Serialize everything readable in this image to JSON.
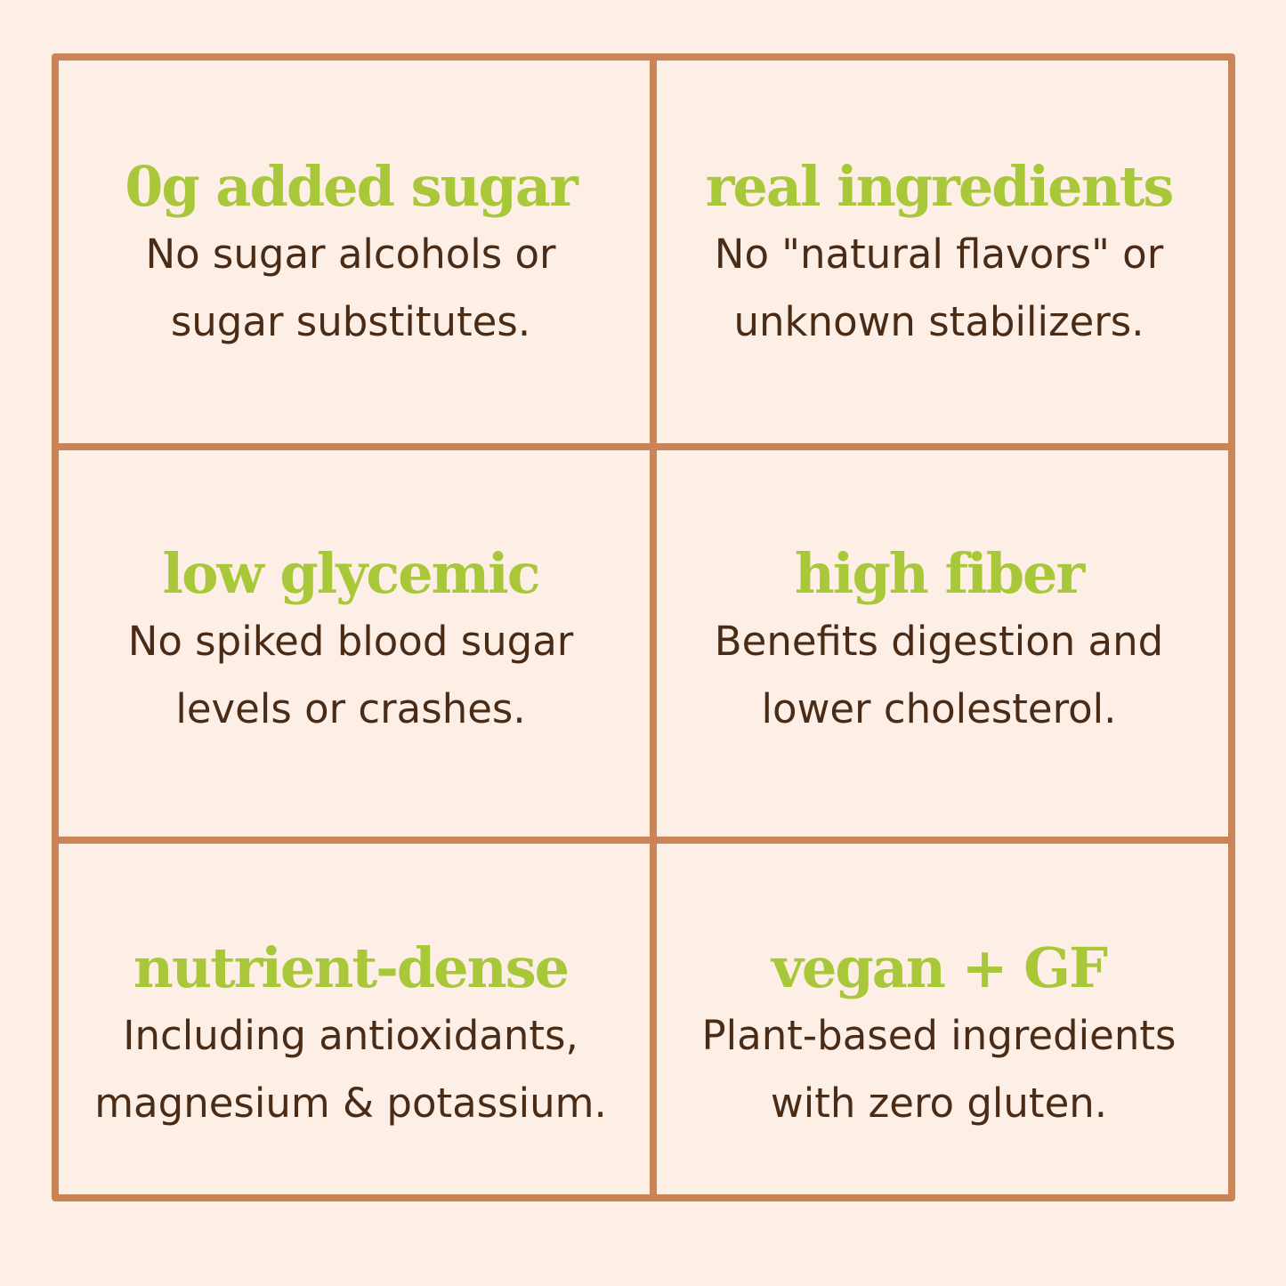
{
  "colors": {
    "background": "#fdeee6",
    "grid_border": "#c98458",
    "title": "#a8c83a",
    "description": "#4a2b16"
  },
  "cells": [
    {
      "title": "0g added sugar",
      "description": "No sugar alcohols or\nsugar substitutes."
    },
    {
      "title": "real ingredients",
      "description": "No \"natural flavors\" or\nunknown stabilizers."
    },
    {
      "title": "low glycemic",
      "description": "No spiked blood sugar\nlevels or crashes."
    },
    {
      "title": "high fiber",
      "description": "Benefits digestion and\nlower cholesterol."
    },
    {
      "title": "nutrient-dense",
      "description": "Including antioxidants,\nmagnesium & potassium."
    },
    {
      "title": "vegan + GF",
      "description": "Plant-based ingredients\nwith zero gluten."
    }
  ]
}
